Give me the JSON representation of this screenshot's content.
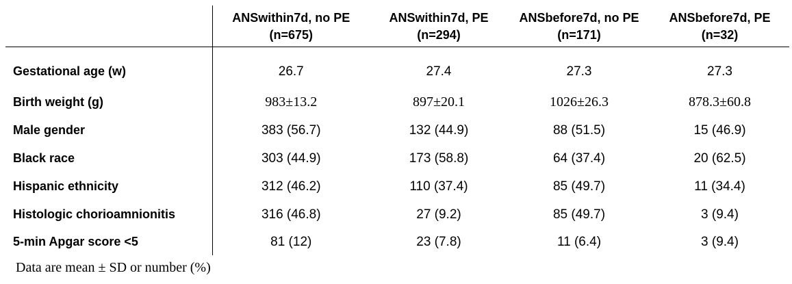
{
  "table": {
    "columns": [
      {
        "line1": "ANSwithin7d, no PE",
        "line2": "(n=675)"
      },
      {
        "line1": "ANSwithin7d, PE",
        "line2": "(n=294)"
      },
      {
        "line1": "ANSbefore7d, no PE",
        "line2": "(n=171)"
      },
      {
        "line1": "ANSbefore7d, PE",
        "line2": "(n=32)"
      }
    ],
    "rows": [
      {
        "label": "Gestational age (w)",
        "values": [
          "26.7",
          "27.4",
          "27.3",
          "27.3"
        ]
      },
      {
        "label": "Birth weight (g)",
        "values": [
          "983±13.2",
          "897±20.1",
          "1026±26.3",
          "878.3±60.8"
        ]
      },
      {
        "label": "Male gender",
        "values": [
          "383 (56.7)",
          "132 (44.9)",
          "88 (51.5)",
          "15 (46.9)"
        ]
      },
      {
        "label": "Black race",
        "values": [
          "303 (44.9)",
          "173 (58.8)",
          "64 (37.4)",
          "20 (62.5)"
        ]
      },
      {
        "label": "Hispanic ethnicity",
        "values": [
          "312 (46.2)",
          "110 (37.4)",
          "85 (49.7)",
          "11 (34.4)"
        ]
      },
      {
        "label": "Histologic chorioamnionitis",
        "values": [
          "316 (46.8)",
          "27 (9.2)",
          "85 (49.7)",
          "3 (9.4)"
        ]
      },
      {
        "label": "5-min Apgar score <5",
        "values": [
          "81 (12)",
          "23 (7.8)",
          "11 (6.4)",
          "3 (9.4)"
        ]
      }
    ]
  },
  "footnote": "Data are mean ± SD or number (%)"
}
